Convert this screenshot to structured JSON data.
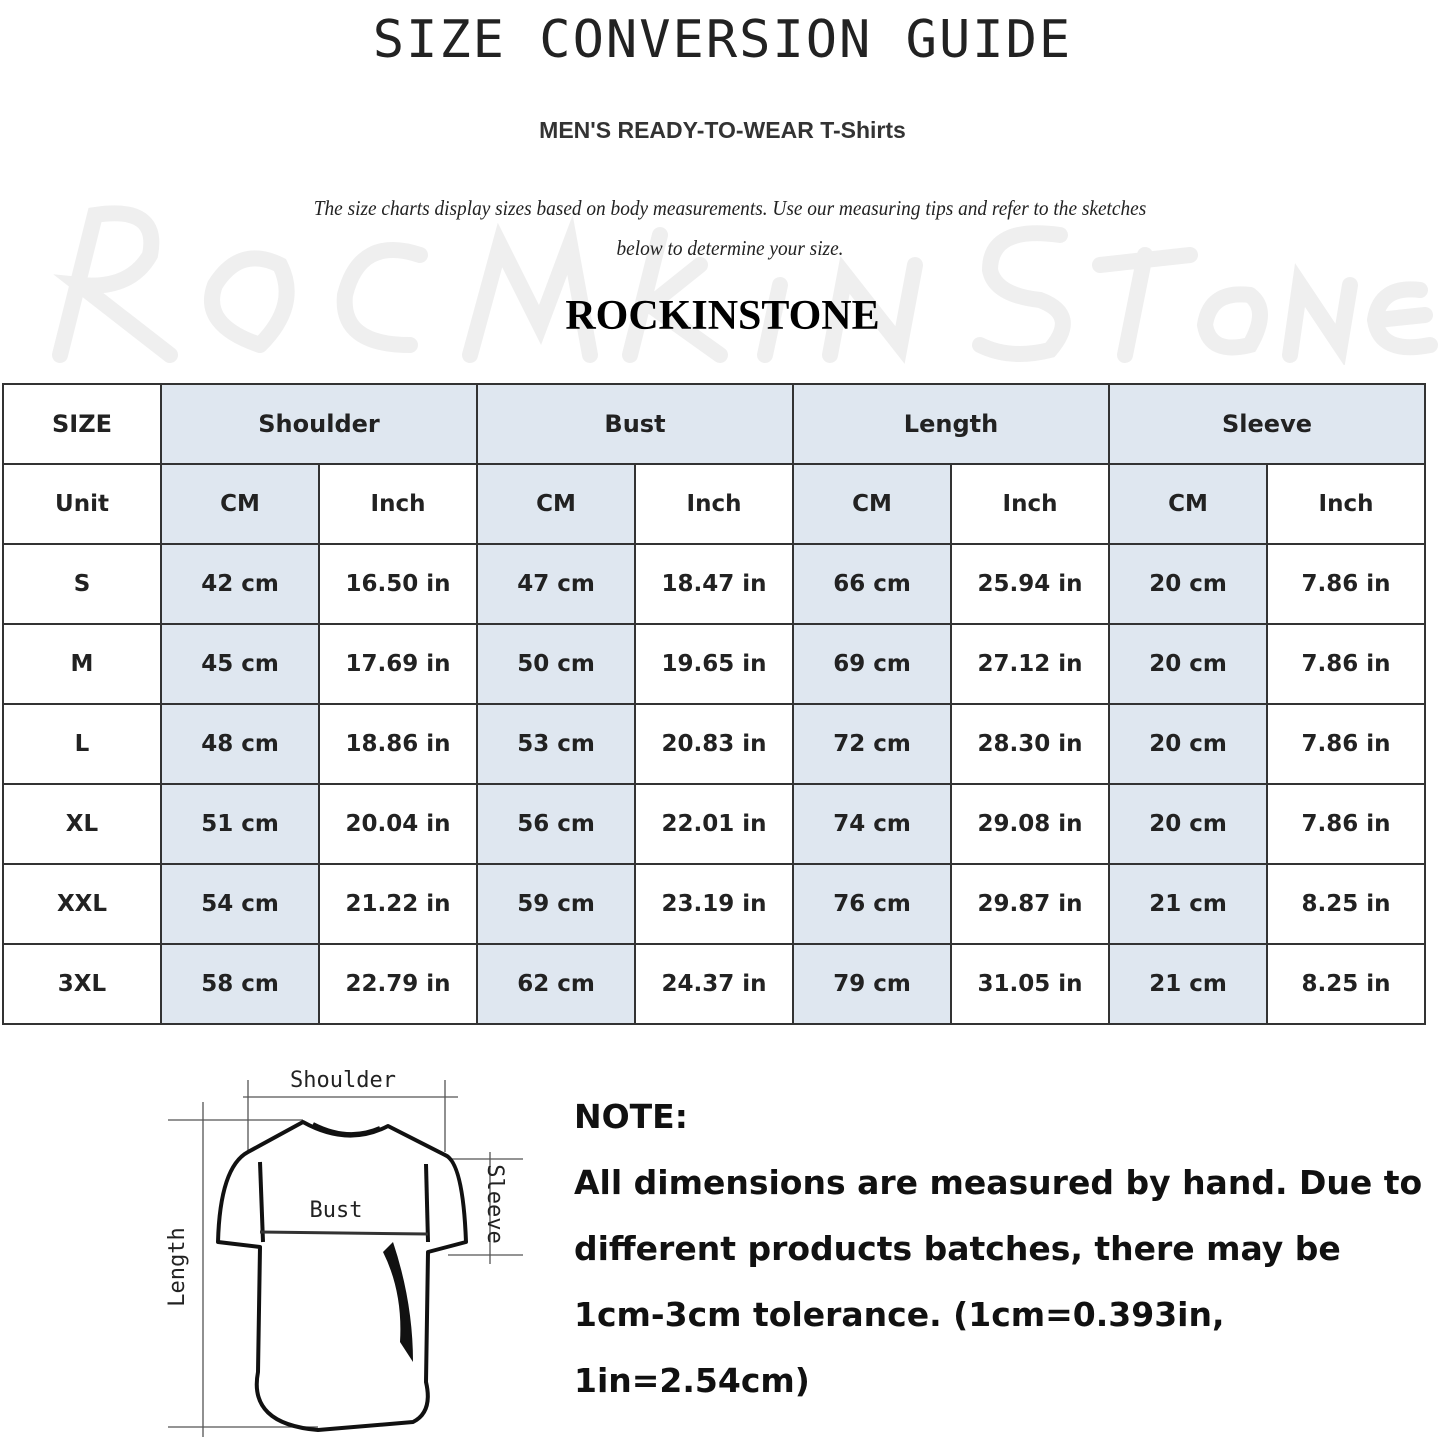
{
  "header": {
    "title": "SIZE CONVERSION GUIDE",
    "subtitle": "MEN'S READY-TO-WEAR T-Shirts",
    "description_line1": "The size charts display sizes based on body measurements. Use our measuring tips and refer to the sketches",
    "description_line2": "below to determine your size.",
    "brand": "ROCKINSTONE",
    "watermark": "RoCkInStone"
  },
  "colors": {
    "header_fill": "#dfe7f0",
    "border": "#333333"
  },
  "table": {
    "size_label": "SIZE",
    "unit_label": "Unit",
    "groups": [
      "Shoulder",
      "Bust",
      "Length",
      "Sleeve"
    ],
    "units": [
      "CM",
      "Inch"
    ],
    "rows": [
      {
        "size": "S",
        "values": [
          "42 cm",
          "16.50 in",
          "47 cm",
          "18.47  in",
          "66 cm",
          "25.94  in",
          "20 cm",
          "7.86  in"
        ]
      },
      {
        "size": "M",
        "values": [
          "45 cm",
          "17.69  in",
          "50 cm",
          "19.65  in",
          "69 cm",
          "27.12  in",
          "20 cm",
          "7.86  in"
        ]
      },
      {
        "size": "L",
        "values": [
          "48 cm",
          "18.86  in",
          "53 cm",
          "20.83  in",
          "72 cm",
          "28.30  in",
          "20 cm",
          "7.86  in"
        ]
      },
      {
        "size": "XL",
        "values": [
          "51 cm",
          "20.04  in",
          "56 cm",
          "22.01  in",
          "74 cm",
          "29.08  in",
          "20 cm",
          "7.86  in"
        ]
      },
      {
        "size": "XXL",
        "values": [
          "54 cm",
          "21.22  in",
          "59 cm",
          "23.19  in",
          "76 cm",
          "29.87  in",
          "21 cm",
          "8.25  in"
        ]
      },
      {
        "size": "3XL",
        "values": [
          "58 cm",
          "22.79  in",
          "62 cm",
          "24.37  in",
          "79 cm",
          "31.05  in",
          "21 cm",
          "8.25  in"
        ]
      }
    ]
  },
  "diagram": {
    "shoulder": "Shoulder",
    "bust": "Bust",
    "length": "Length",
    "sleeve": "Sleeve"
  },
  "note": {
    "heading": "NOTE:",
    "line1": "All dimensions are measured by hand. Due to",
    "line2": "different products batches, there may be",
    "line3": "1cm-3cm tolerance. (1cm=0.393in, 1in=2.54cm)"
  }
}
